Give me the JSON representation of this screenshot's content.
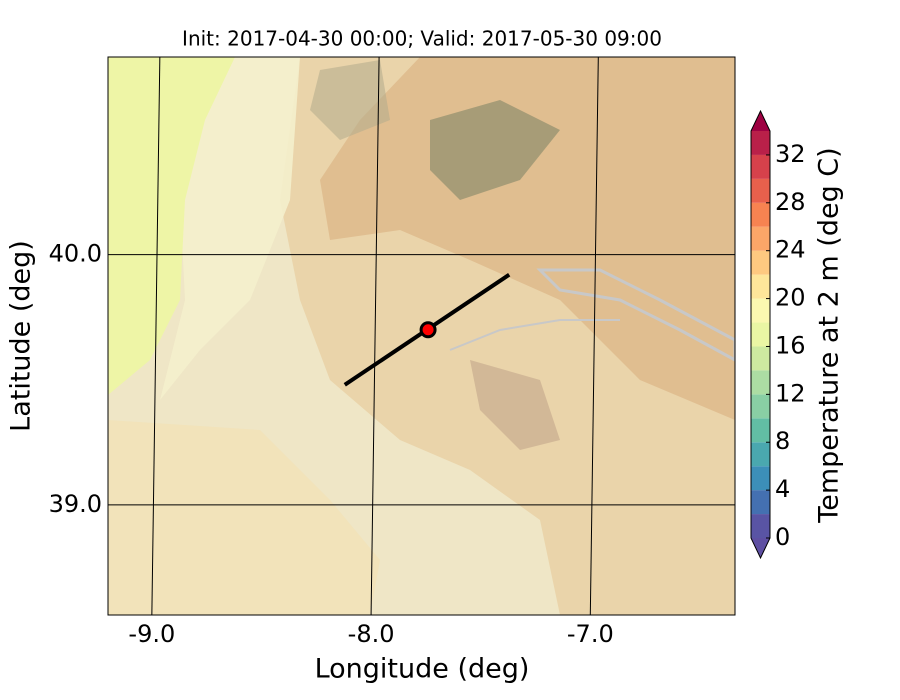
{
  "chart_data": {
    "type": "map",
    "title": "Init: 2017-04-30 00:00; Valid: 2017-05-30 09:00",
    "xlabel": "Longitude (deg)",
    "ylabel": "Latitude (deg)",
    "xlim": [
      -9.2,
      -6.34
    ],
    "ylim": [
      38.56,
      40.79
    ],
    "xticks": [
      {
        "value": -9,
        "label": "-9.0"
      },
      {
        "value": -8,
        "label": "-8.0"
      },
      {
        "value": -7,
        "label": "-7.0"
      }
    ],
    "yticks": [
      {
        "value": 39,
        "label": "39.0"
      },
      {
        "value": 40,
        "label": "40.0"
      }
    ],
    "grid": true,
    "cross_section": {
      "x": [
        -8.12,
        -7.37
      ],
      "y": [
        39.48,
        39.92
      ],
      "color": "#000000"
    },
    "point": {
      "x": -7.74,
      "y": 39.7,
      "color": "#ff0000"
    },
    "colorbar": {
      "label": "Temperature at 2 m (deg C)",
      "levels": [
        0,
        2,
        4,
        6,
        8,
        10,
        12,
        14,
        16,
        18,
        20,
        22,
        24,
        26,
        28,
        30,
        32,
        34
      ],
      "colors": [
        "#5954a4",
        "#4470b1",
        "#3c8fb8",
        "#4aa8af",
        "#62bea4",
        "#89cfa4",
        "#acdda3",
        "#cdeaa0",
        "#eaf6a4",
        "#fbf8b0",
        "#fee69a",
        "#fec980",
        "#fca668",
        "#f78351",
        "#e8604c",
        "#d6414b",
        "#b92049"
      ],
      "under_color": "#5e4fa2",
      "over_color": "#9e0142",
      "ticks": [
        0,
        4,
        8,
        12,
        16,
        20,
        24,
        28,
        32
      ]
    }
  }
}
